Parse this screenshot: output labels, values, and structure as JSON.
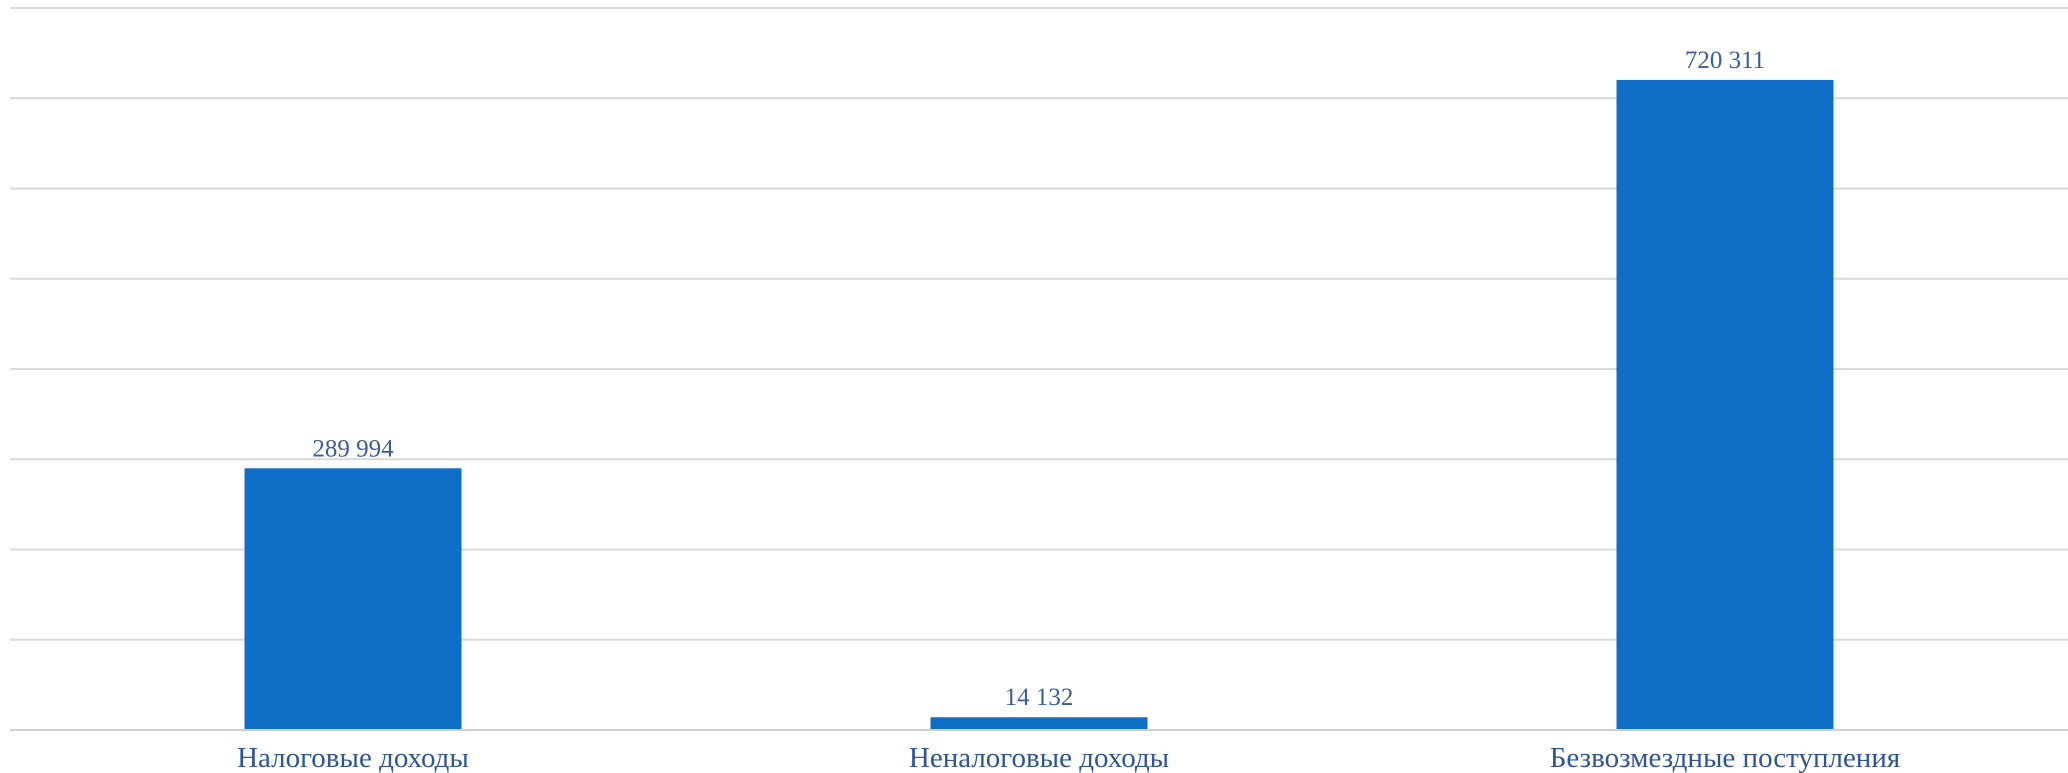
{
  "chart_data": {
    "type": "bar",
    "categories": [
      "Налоговые доходы",
      "Неналоговые доходы",
      "Безвозмездные поступления"
    ],
    "values": [
      289994,
      14132,
      720311
    ],
    "value_labels": [
      "289 994",
      "14 132",
      "720 311"
    ],
    "ylim": [
      0,
      800000
    ],
    "grid": true,
    "legend": "none",
    "bar_color": "#0f6fc6",
    "label_color": "#2f5597"
  }
}
